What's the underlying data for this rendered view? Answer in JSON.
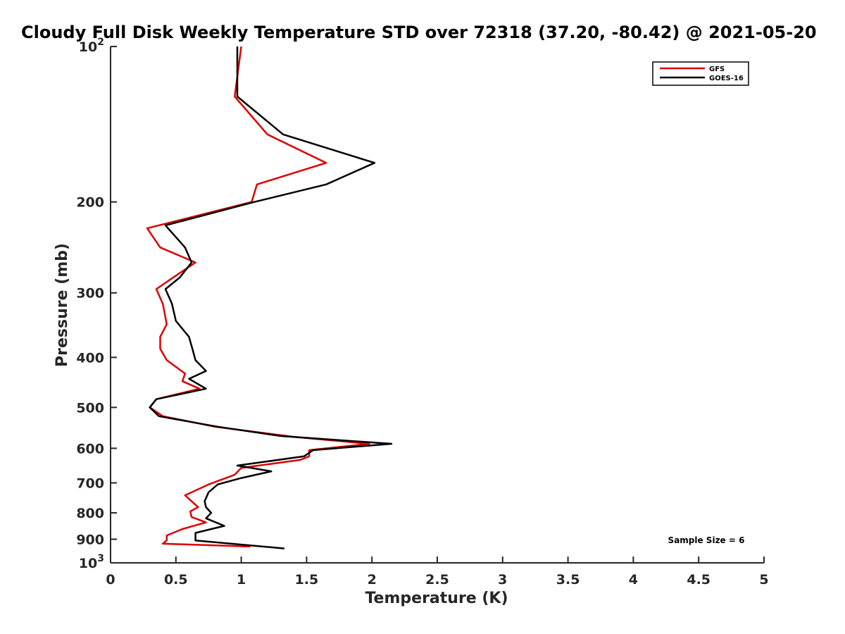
{
  "chart_data": {
    "type": "line",
    "title": "Cloudy Full Disk Weekly Temperature STD over 72318 (37.20, -80.42) @ 2021-05-20",
    "xlabel": "Temperature (K)",
    "ylabel": "Pressure (mb)",
    "xlim": [
      0,
      5
    ],
    "ylim": [
      100,
      1000
    ],
    "yscale": "log",
    "y_reversed": true,
    "x_ticks": [
      "0",
      "0.5",
      "1",
      "1.5",
      "2",
      "2.5",
      "3",
      "3.5",
      "4",
      "4.5",
      "5"
    ],
    "x_tick_values": [
      0,
      0.5,
      1,
      1.5,
      2,
      2.5,
      3,
      3.5,
      4,
      4.5,
      5
    ],
    "y_ticks": [
      {
        "value": 100,
        "base": "10",
        "exp": "2"
      },
      {
        "value": 200,
        "label": "200"
      },
      {
        "value": 300,
        "label": "300"
      },
      {
        "value": 400,
        "label": "400"
      },
      {
        "value": 500,
        "label": "500"
      },
      {
        "value": 600,
        "label": "600"
      },
      {
        "value": 700,
        "label": "700"
      },
      {
        "value": 800,
        "label": "800"
      },
      {
        "value": 900,
        "label": "900"
      },
      {
        "value": 1000,
        "base": "10",
        "exp": "3"
      }
    ],
    "legend_position": "top-right",
    "annotation": "Sample Size = 6",
    "series": [
      {
        "name": "GFS",
        "color": "#dd0000",
        "points": [
          [
            1.0,
            100
          ],
          [
            0.95,
            125
          ],
          [
            1.2,
            148
          ],
          [
            1.65,
            168
          ],
          [
            1.12,
            185
          ],
          [
            1.08,
            200
          ],
          [
            0.28,
            225
          ],
          [
            0.38,
            245
          ],
          [
            0.65,
            262
          ],
          [
            0.48,
            280
          ],
          [
            0.35,
            295
          ],
          [
            0.4,
            315
          ],
          [
            0.43,
            345
          ],
          [
            0.38,
            365
          ],
          [
            0.38,
            385
          ],
          [
            0.43,
            405
          ],
          [
            0.57,
            430
          ],
          [
            0.55,
            445
          ],
          [
            0.68,
            460
          ],
          [
            0.35,
            482
          ],
          [
            0.3,
            500
          ],
          [
            0.4,
            520
          ],
          [
            0.8,
            545
          ],
          [
            1.4,
            570
          ],
          [
            1.98,
            588
          ],
          [
            1.52,
            605
          ],
          [
            1.52,
            622
          ],
          [
            1.45,
            632
          ],
          [
            1.0,
            655
          ],
          [
            0.95,
            675
          ],
          [
            0.75,
            705
          ],
          [
            0.57,
            740
          ],
          [
            0.62,
            760
          ],
          [
            0.67,
            780
          ],
          [
            0.61,
            795
          ],
          [
            0.62,
            815
          ],
          [
            0.73,
            835
          ],
          [
            0.55,
            860
          ],
          [
            0.43,
            885
          ],
          [
            0.43,
            905
          ],
          [
            0.4,
            918
          ],
          [
            1.07,
            930
          ]
        ]
      },
      {
        "name": "GOES-16",
        "color": "#000000",
        "points": [
          [
            0.97,
            100
          ],
          [
            0.97,
            125
          ],
          [
            1.32,
            148
          ],
          [
            2.02,
            168
          ],
          [
            1.65,
            185
          ],
          [
            1.1,
            200
          ],
          [
            0.42,
            222
          ],
          [
            0.57,
            245
          ],
          [
            0.62,
            262
          ],
          [
            0.53,
            280
          ],
          [
            0.42,
            295
          ],
          [
            0.47,
            315
          ],
          [
            0.5,
            340
          ],
          [
            0.6,
            365
          ],
          [
            0.63,
            388
          ],
          [
            0.65,
            405
          ],
          [
            0.73,
            425
          ],
          [
            0.6,
            440
          ],
          [
            0.73,
            460
          ],
          [
            0.35,
            482
          ],
          [
            0.3,
            500
          ],
          [
            0.37,
            520
          ],
          [
            0.82,
            545
          ],
          [
            1.3,
            568
          ],
          [
            2.15,
            588
          ],
          [
            1.55,
            605
          ],
          [
            1.48,
            622
          ],
          [
            0.97,
            648
          ],
          [
            1.23,
            665
          ],
          [
            1.0,
            685
          ],
          [
            0.82,
            705
          ],
          [
            0.75,
            730
          ],
          [
            0.72,
            760
          ],
          [
            0.73,
            780
          ],
          [
            0.77,
            800
          ],
          [
            0.73,
            820
          ],
          [
            0.87,
            848
          ],
          [
            0.65,
            875
          ],
          [
            0.65,
            905
          ],
          [
            1.33,
            938
          ]
        ]
      }
    ]
  }
}
